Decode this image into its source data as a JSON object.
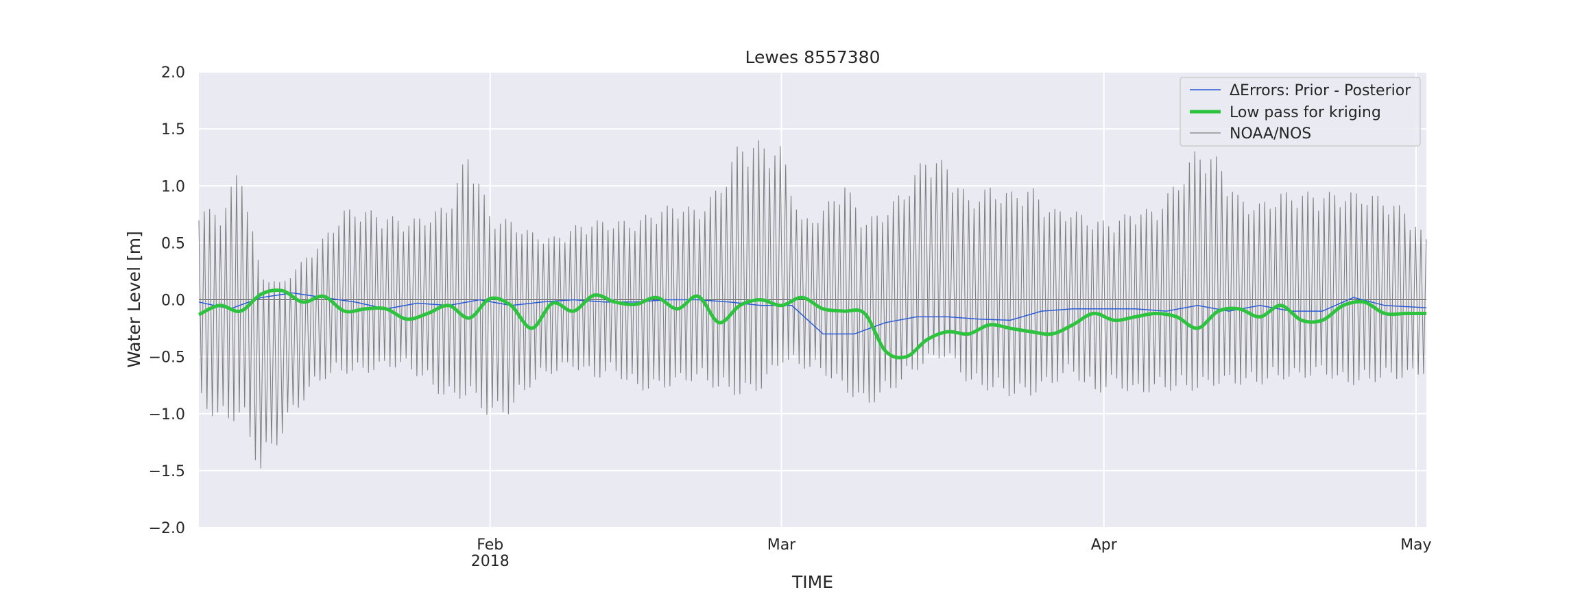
{
  "chart_data": {
    "type": "line",
    "title": "Lewes  8557380",
    "xlabel": "TIME",
    "ylabel": "Water Level [m]",
    "x_range": [
      "2018-01-04",
      "2018-05-02"
    ],
    "ylim": [
      -2.0,
      2.0
    ],
    "yticks": [
      {
        "value": 2.0,
        "label": "2.0"
      },
      {
        "value": 1.5,
        "label": "1.5"
      },
      {
        "value": 1.0,
        "label": "1.0"
      },
      {
        "value": 0.5,
        "label": "0.5"
      },
      {
        "value": 0.0,
        "label": "0.0"
      },
      {
        "value": -0.5,
        "label": "−0.5"
      },
      {
        "value": -1.0,
        "label": "−1.0"
      },
      {
        "value": -1.5,
        "label": "−1.5"
      },
      {
        "value": -2.0,
        "label": "−2.0"
      }
    ],
    "xticks": [
      {
        "date": "2018-02-01",
        "label": "Feb",
        "sublabel": "2018"
      },
      {
        "date": "2018-03-01",
        "label": "Mar",
        "sublabel": ""
      },
      {
        "date": "2018-04-01",
        "label": "Apr",
        "sublabel": ""
      },
      {
        "date": "2018-05-01",
        "label": "May",
        "sublabel": ""
      }
    ],
    "grid": true,
    "legend_position": "top-right",
    "series": [
      {
        "name": "NOAA/NOS",
        "color": "#808080",
        "style": "thin",
        "description_note": "semi-diurnal tidal oscillation; envelope sampled daily",
        "envelope": {
          "dates": [
            "2018-01-04",
            "2018-01-06",
            "2018-01-08",
            "2018-01-10",
            "2018-01-12",
            "2018-01-14",
            "2018-01-16",
            "2018-01-18",
            "2018-01-20",
            "2018-01-22",
            "2018-01-24",
            "2018-01-26",
            "2018-01-28",
            "2018-01-30",
            "2018-02-01",
            "2018-02-03",
            "2018-02-05",
            "2018-02-07",
            "2018-02-09",
            "2018-02-11",
            "2018-02-13",
            "2018-02-15",
            "2018-02-17",
            "2018-02-19",
            "2018-02-21",
            "2018-02-23",
            "2018-02-25",
            "2018-02-27",
            "2018-03-01",
            "2018-03-03",
            "2018-03-05",
            "2018-03-07",
            "2018-03-09",
            "2018-03-11",
            "2018-03-13",
            "2018-03-15",
            "2018-03-17",
            "2018-03-19",
            "2018-03-21",
            "2018-03-23",
            "2018-03-25",
            "2018-03-27",
            "2018-03-29",
            "2018-03-31",
            "2018-04-02",
            "2018-04-04",
            "2018-04-06",
            "2018-04-08",
            "2018-04-10",
            "2018-04-12",
            "2018-04-14",
            "2018-04-16",
            "2018-04-18",
            "2018-04-20",
            "2018-04-22",
            "2018-04-24",
            "2018-04-26",
            "2018-04-28",
            "2018-04-30",
            "2018-05-02"
          ],
          "high": [
            0.85,
            0.75,
            1.2,
            0.2,
            0.15,
            0.35,
            0.55,
            0.8,
            0.8,
            0.75,
            0.7,
            0.75,
            0.85,
            1.35,
            0.75,
            0.7,
            0.6,
            0.55,
            0.65,
            0.7,
            0.7,
            0.7,
            0.8,
            0.85,
            0.8,
            1.0,
            1.4,
            1.4,
            1.35,
            0.7,
            0.8,
            1.05,
            0.7,
            0.8,
            1.0,
            1.3,
            1.2,
            0.9,
            1.0,
            0.95,
            1.0,
            0.8,
            0.8,
            0.7,
            0.7,
            0.8,
            0.8,
            1.05,
            1.35,
            1.25,
            0.9,
            0.85,
            0.95,
            0.95,
            0.95,
            0.95,
            0.95,
            0.9,
            0.8,
            0.55
          ],
          "low": [
            -0.9,
            -1.1,
            -1.05,
            -1.55,
            -1.2,
            -0.9,
            -0.7,
            -0.65,
            -0.65,
            -0.6,
            -0.6,
            -0.75,
            -0.9,
            -0.85,
            -1.05,
            -1.0,
            -0.75,
            -0.65,
            -0.6,
            -0.7,
            -0.65,
            -0.8,
            -0.8,
            -0.75,
            -0.7,
            -0.8,
            -0.85,
            -0.8,
            -0.55,
            -0.6,
            -0.65,
            -0.8,
            -0.95,
            -0.85,
            -0.7,
            -0.55,
            -0.5,
            -0.75,
            -0.8,
            -0.85,
            -0.85,
            -0.75,
            -0.65,
            -0.85,
            -0.75,
            -0.85,
            -0.8,
            -0.8,
            -0.8,
            -0.75,
            -0.75,
            -0.75,
            -0.7,
            -0.7,
            -0.65,
            -0.75,
            -0.75,
            -0.7,
            -0.7,
            -0.65
          ]
        }
      },
      {
        "name": "ΔErrors: Prior - Posterior",
        "color": "#2a5bd7",
        "style": "thin",
        "dates": [
          "2018-01-04",
          "2018-01-07",
          "2018-01-10",
          "2018-01-13",
          "2018-01-16",
          "2018-01-19",
          "2018-01-22",
          "2018-01-25",
          "2018-01-28",
          "2018-01-31",
          "2018-02-03",
          "2018-02-06",
          "2018-02-09",
          "2018-02-12",
          "2018-02-15",
          "2018-02-18",
          "2018-02-21",
          "2018-02-24",
          "2018-02-27",
          "2018-03-02",
          "2018-03-05",
          "2018-03-08",
          "2018-03-11",
          "2018-03-14",
          "2018-03-17",
          "2018-03-20",
          "2018-03-23",
          "2018-03-26",
          "2018-03-29",
          "2018-04-01",
          "2018-04-04",
          "2018-04-07",
          "2018-04-10",
          "2018-04-13",
          "2018-04-16",
          "2018-04-19",
          "2018-04-22",
          "2018-04-25",
          "2018-04-28",
          "2018-05-02"
        ],
        "values": [
          -0.02,
          -0.08,
          0.02,
          0.06,
          0.02,
          -0.02,
          -0.08,
          -0.03,
          -0.05,
          0.0,
          -0.05,
          -0.02,
          0.0,
          -0.02,
          -0.02,
          0.0,
          0.0,
          -0.02,
          -0.05,
          -0.05,
          -0.3,
          -0.3,
          -0.2,
          -0.15,
          -0.15,
          -0.17,
          -0.18,
          -0.1,
          -0.08,
          -0.08,
          -0.08,
          -0.1,
          -0.05,
          -0.1,
          -0.05,
          -0.1,
          -0.1,
          0.02,
          -0.05,
          -0.07
        ]
      },
      {
        "name": "Low pass for kriging",
        "color": "#2ec33e",
        "style": "thick",
        "dates": [
          "2018-01-04",
          "2018-01-06",
          "2018-01-08",
          "2018-01-10",
          "2018-01-12",
          "2018-01-14",
          "2018-01-16",
          "2018-01-18",
          "2018-01-20",
          "2018-01-22",
          "2018-01-24",
          "2018-01-26",
          "2018-01-28",
          "2018-01-30",
          "2018-02-01",
          "2018-02-03",
          "2018-02-05",
          "2018-02-07",
          "2018-02-09",
          "2018-02-11",
          "2018-02-13",
          "2018-02-15",
          "2018-02-17",
          "2018-02-19",
          "2018-02-21",
          "2018-02-23",
          "2018-02-25",
          "2018-02-27",
          "2018-03-01",
          "2018-03-03",
          "2018-03-05",
          "2018-03-07",
          "2018-03-09",
          "2018-03-11",
          "2018-03-13",
          "2018-03-15",
          "2018-03-17",
          "2018-03-19",
          "2018-03-21",
          "2018-03-23",
          "2018-03-25",
          "2018-03-27",
          "2018-03-29",
          "2018-03-31",
          "2018-04-02",
          "2018-04-04",
          "2018-04-06",
          "2018-04-08",
          "2018-04-10",
          "2018-04-12",
          "2018-04-14",
          "2018-04-16",
          "2018-04-18",
          "2018-04-20",
          "2018-04-22",
          "2018-04-24",
          "2018-04-26",
          "2018-04-28",
          "2018-04-30",
          "2018-05-02"
        ],
        "values": [
          -0.13,
          -0.05,
          -0.1,
          0.05,
          0.08,
          -0.02,
          0.03,
          -0.1,
          -0.08,
          -0.08,
          -0.17,
          -0.12,
          -0.05,
          -0.16,
          0.01,
          -0.05,
          -0.25,
          -0.03,
          -0.1,
          0.04,
          -0.02,
          -0.04,
          0.02,
          -0.08,
          0.03,
          -0.2,
          -0.05,
          0.0,
          -0.05,
          0.02,
          -0.08,
          -0.1,
          -0.12,
          -0.45,
          -0.5,
          -0.35,
          -0.28,
          -0.3,
          -0.22,
          -0.25,
          -0.28,
          -0.3,
          -0.22,
          -0.12,
          -0.18,
          -0.15,
          -0.12,
          -0.15,
          -0.25,
          -0.1,
          -0.08,
          -0.15,
          -0.05,
          -0.18,
          -0.18,
          -0.05,
          -0.02,
          -0.12,
          -0.12,
          -0.12
        ]
      }
    ]
  }
}
